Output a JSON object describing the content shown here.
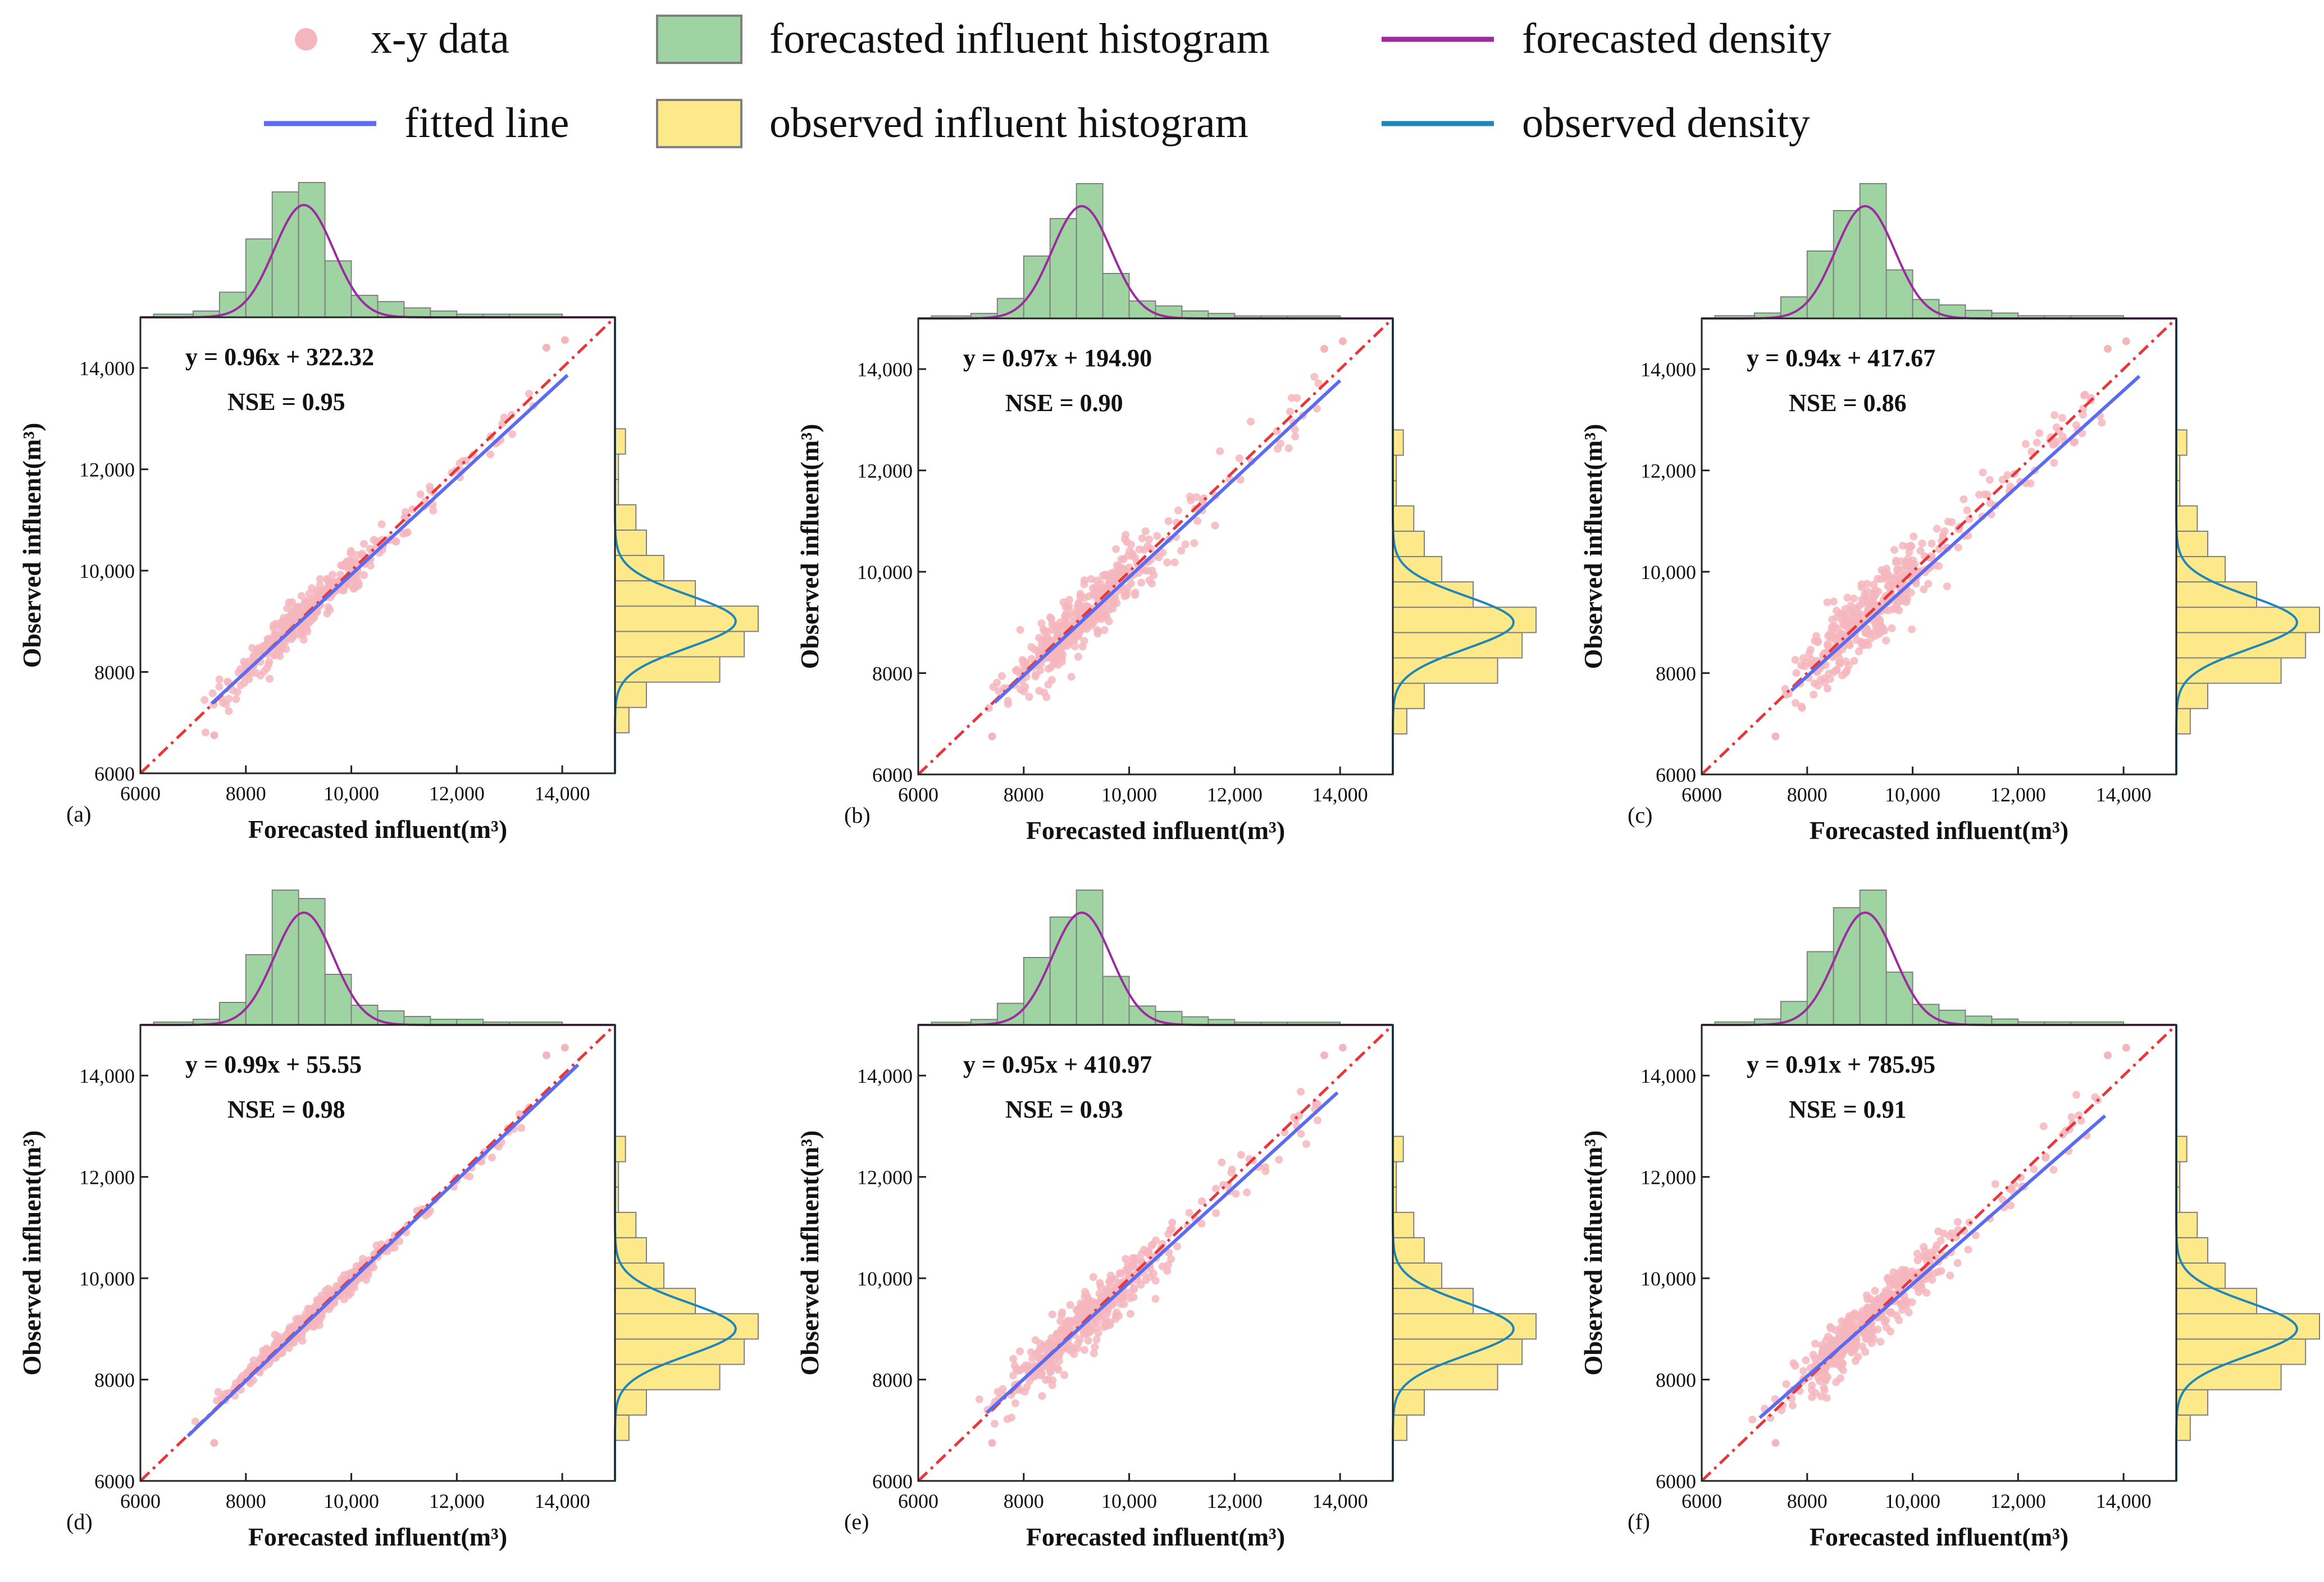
{
  "legend": {
    "items": [
      {
        "label": "x-y data",
        "kind": "point",
        "color": "#f4b6bd"
      },
      {
        "label": "forecasted influent histogram",
        "kind": "patch",
        "color": "#9fd4a2"
      },
      {
        "label": "forecasted density",
        "kind": "line",
        "color": "#9b2b9e"
      },
      {
        "label": "fitted line",
        "kind": "line",
        "color": "#5b6cf0"
      },
      {
        "label": "observed influent histogram",
        "kind": "patch",
        "color": "#fde88a"
      },
      {
        "label": "observed density",
        "kind": "line",
        "color": "#1f86b8"
      }
    ]
  },
  "colors": {
    "scatter": "#f4b6bd",
    "fitted": "#5b6cf0",
    "identity": "#e8373b",
    "forecast_hist": "#9fd4a2",
    "forecast_density": "#9b2b9e",
    "observed_hist": "#fde88a",
    "observed_density": "#1f86b8",
    "hist_edge": "#808080"
  },
  "chart_data": [
    {
      "type": "scatter",
      "panel_label": "(a)",
      "equation": "y = 0.96x + 322.32",
      "nse": "NSE = 0.95",
      "slope": 0.96,
      "intercept": 322.32,
      "fit_range": [
        7350,
        14100
      ],
      "spread": 180,
      "xlabel": "Forecasted influent(m³)",
      "ylabel": "Observed influent(m³)",
      "xlim": [
        6000,
        15000
      ],
      "ylim": [
        6000,
        15000
      ],
      "xticks": [
        "6000",
        "8000",
        "10,000",
        "12,000",
        "14,000"
      ],
      "yticks": [
        "6000",
        "8000",
        "10,000",
        "12,000",
        "14,000"
      ],
      "forecast_hist": {
        "edges": [
          6250,
          7000,
          7500,
          8000,
          8500,
          9000,
          9500,
          10000,
          10500,
          11000,
          11500,
          12000,
          12500,
          13000,
          14000
        ],
        "counts": [
          1,
          2,
          8,
          25,
          40,
          43,
          18,
          7,
          5,
          3,
          2,
          1,
          1,
          1
        ]
      },
      "observed_hist": {
        "edges": [
          6800,
          7300,
          7800,
          8300,
          8800,
          9300,
          9800,
          10300,
          10800,
          11300,
          11800,
          12300,
          12800
        ],
        "counts": [
          4,
          9,
          30,
          37,
          41,
          23,
          14,
          9,
          6,
          1,
          1,
          3
        ]
      }
    },
    {
      "type": "scatter",
      "panel_label": "(b)",
      "equation": "y = 0.97x + 194.90",
      "nse": "NSE = 0.90",
      "slope": 0.97,
      "intercept": 194.9,
      "fit_range": [
        7450,
        14000
      ],
      "spread": 300,
      "xlabel": "Forecasted influent(m³)",
      "ylabel": "Observed influent(m³)",
      "xlim": [
        6000,
        15000
      ],
      "ylim": [
        6000,
        15000
      ],
      "xticks": [
        "6000",
        "8000",
        "10,000",
        "12,000",
        "14,000"
      ],
      "yticks": [
        "6000",
        "8000",
        "10,000",
        "12,000",
        "14,000"
      ],
      "forecast_hist": {
        "edges": [
          6250,
          7000,
          7500,
          8000,
          8500,
          9000,
          9500,
          10000,
          10500,
          11000,
          11500,
          12000,
          12500,
          13000,
          14000
        ],
        "counts": [
          1,
          2,
          8,
          25,
          40,
          54,
          18,
          7,
          5,
          3,
          2,
          1,
          1,
          1
        ]
      },
      "observed_hist": {
        "edges": [
          6800,
          7300,
          7800,
          8300,
          8800,
          9300,
          9800,
          10300,
          10800,
          11300,
          11800,
          12300,
          12800
        ],
        "counts": [
          4,
          9,
          30,
          37,
          41,
          23,
          14,
          9,
          6,
          1,
          1,
          3
        ]
      }
    },
    {
      "type": "scatter",
      "panel_label": "(c)",
      "equation": "y = 0.94x + 417.67",
      "nse": "NSE = 0.86",
      "slope": 0.94,
      "intercept": 417.67,
      "fit_range": [
        7700,
        14300
      ],
      "spread": 340,
      "xlabel": "Forecasted influent(m³)",
      "ylabel": "Observed influent(m³)",
      "xlim": [
        6000,
        15000
      ],
      "ylim": [
        6000,
        15000
      ],
      "xticks": [
        "6000",
        "8000",
        "10,000",
        "12,000",
        "14,000"
      ],
      "yticks": [
        "6000",
        "8000",
        "10,000",
        "12,000",
        "14,000"
      ],
      "forecast_hist": {
        "edges": [
          6250,
          7000,
          7500,
          8000,
          8500,
          9000,
          9500,
          10000,
          10500,
          11000,
          11500,
          12000,
          12500,
          13000,
          14000
        ],
        "counts": [
          1,
          2,
          8,
          25,
          40,
          50,
          18,
          7,
          5,
          3,
          2,
          1,
          1,
          1
        ]
      },
      "observed_hist": {
        "edges": [
          6800,
          7300,
          7800,
          8300,
          8800,
          9300,
          9800,
          10300,
          10800,
          11300,
          11800,
          12300,
          12800
        ],
        "counts": [
          4,
          9,
          30,
          37,
          41,
          23,
          14,
          9,
          6,
          1,
          1,
          3
        ]
      }
    },
    {
      "type": "scatter",
      "panel_label": "(d)",
      "equation": "y = 0.99x + 55.55",
      "nse": "NSE = 0.98",
      "slope": 0.99,
      "intercept": 55.55,
      "fit_range": [
        6900,
        14300
      ],
      "spread": 110,
      "xlabel": "Forecasted influent(m³)",
      "ylabel": "Observed influent(m³)",
      "xlim": [
        6000,
        15000
      ],
      "ylim": [
        6000,
        15000
      ],
      "xticks": [
        "6000",
        "8000",
        "10,000",
        "12,000",
        "14,000"
      ],
      "yticks": [
        "6000",
        "8000",
        "10,000",
        "12,000",
        "14,000"
      ],
      "forecast_hist": {
        "edges": [
          6250,
          7000,
          7500,
          8000,
          8500,
          9000,
          9500,
          10000,
          10500,
          11000,
          11500,
          12000,
          12500,
          13000,
          14000
        ],
        "counts": [
          1,
          2,
          8,
          25,
          48,
          45,
          18,
          7,
          5,
          3,
          2,
          2,
          1,
          1
        ]
      },
      "observed_hist": {
        "edges": [
          6800,
          7300,
          7800,
          8300,
          8800,
          9300,
          9800,
          10300,
          10800,
          11300,
          11800,
          12300,
          12800
        ],
        "counts": [
          4,
          9,
          30,
          37,
          41,
          23,
          14,
          9,
          6,
          1,
          1,
          3
        ]
      }
    },
    {
      "type": "scatter",
      "panel_label": "(e)",
      "equation": "y = 0.95x + 410.97",
      "nse": "NSE = 0.93",
      "slope": 0.95,
      "intercept": 410.97,
      "fit_range": [
        7300,
        13950
      ],
      "spread": 260,
      "xlabel": "Forecasted influent(m³)",
      "ylabel": "Observed influent(m³)",
      "xlim": [
        6000,
        15000
      ],
      "ylim": [
        6000,
        15000
      ],
      "xticks": [
        "6000",
        "8000",
        "10,000",
        "12,000",
        "14,000"
      ],
      "yticks": [
        "6000",
        "8000",
        "10,000",
        "12,000",
        "14,000"
      ],
      "forecast_hist": {
        "edges": [
          6250,
          7000,
          7500,
          8000,
          8500,
          9000,
          9500,
          10000,
          10500,
          11000,
          11500,
          12000,
          12500,
          13000,
          14000
        ],
        "counts": [
          1,
          2,
          8,
          25,
          40,
          50,
          18,
          7,
          5,
          3,
          2,
          1,
          1,
          1
        ]
      },
      "observed_hist": {
        "edges": [
          6800,
          7300,
          7800,
          8300,
          8800,
          9300,
          9800,
          10300,
          10800,
          11300,
          11800,
          12300,
          12800
        ],
        "counts": [
          4,
          9,
          30,
          37,
          41,
          23,
          14,
          9,
          6,
          1,
          1,
          3
        ]
      }
    },
    {
      "type": "scatter",
      "panel_label": "(f)",
      "equation": "y = 0.91x + 785.95",
      "nse": "NSE = 0.91",
      "slope": 0.91,
      "intercept": 785.95,
      "fit_range": [
        7100,
        13650
      ],
      "spread": 260,
      "xlabel": "Forecasted influent(m³)",
      "ylabel": "Observed influent(m³)",
      "xlim": [
        6000,
        15000
      ],
      "ylim": [
        6000,
        15000
      ],
      "xticks": [
        "6000",
        "8000",
        "10,000",
        "12,000",
        "14,000"
      ],
      "yticks": [
        "6000",
        "8000",
        "10,000",
        "12,000",
        "14,000"
      ],
      "forecast_hist": {
        "edges": [
          6250,
          7000,
          7500,
          8000,
          8500,
          9000,
          9500,
          10000,
          10500,
          11000,
          11500,
          12000,
          12500,
          13000,
          14000
        ],
        "counts": [
          1,
          2,
          8,
          25,
          40,
          46,
          18,
          7,
          5,
          3,
          2,
          1,
          1,
          1
        ]
      },
      "observed_hist": {
        "edges": [
          6800,
          7300,
          7800,
          8300,
          8800,
          9300,
          9800,
          10300,
          10800,
          11300,
          11800,
          12300,
          12800
        ],
        "counts": [
          4,
          9,
          30,
          37,
          41,
          23,
          14,
          9,
          6,
          1,
          1,
          3
        ]
      }
    }
  ]
}
